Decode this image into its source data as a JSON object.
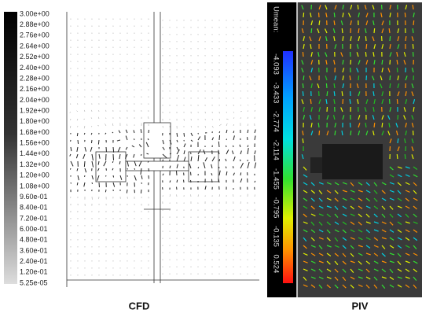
{
  "cfd": {
    "colorbar_labels": [
      "3.00e+00",
      "2.88e+00",
      "2.76e+00",
      "2.64e+00",
      "2.52e+00",
      "2.40e+00",
      "2.28e+00",
      "2.16e+00",
      "2.04e+00",
      "1.92e+00",
      "1.80e+00",
      "1.68e+00",
      "1.56e+00",
      "1.44e+00",
      "1.32e+00",
      "1.20e+00",
      "1.08e+00",
      "9.60e-01",
      "8.40e-01",
      "7.20e-01",
      "6.00e-01",
      "4.80e-01",
      "3.60e-01",
      "2.40e-01",
      "1.20e-01",
      "5.25e-05"
    ],
    "caption": "CFD"
  },
  "piv": {
    "colorbar_title": "Umean:",
    "colorbar_labels": [
      "-4.093",
      "-3.433",
      "-2.774",
      "-2.114",
      "-1.455",
      "-0.795",
      "-0.135",
      "0.524"
    ],
    "caption": "PIV"
  }
}
